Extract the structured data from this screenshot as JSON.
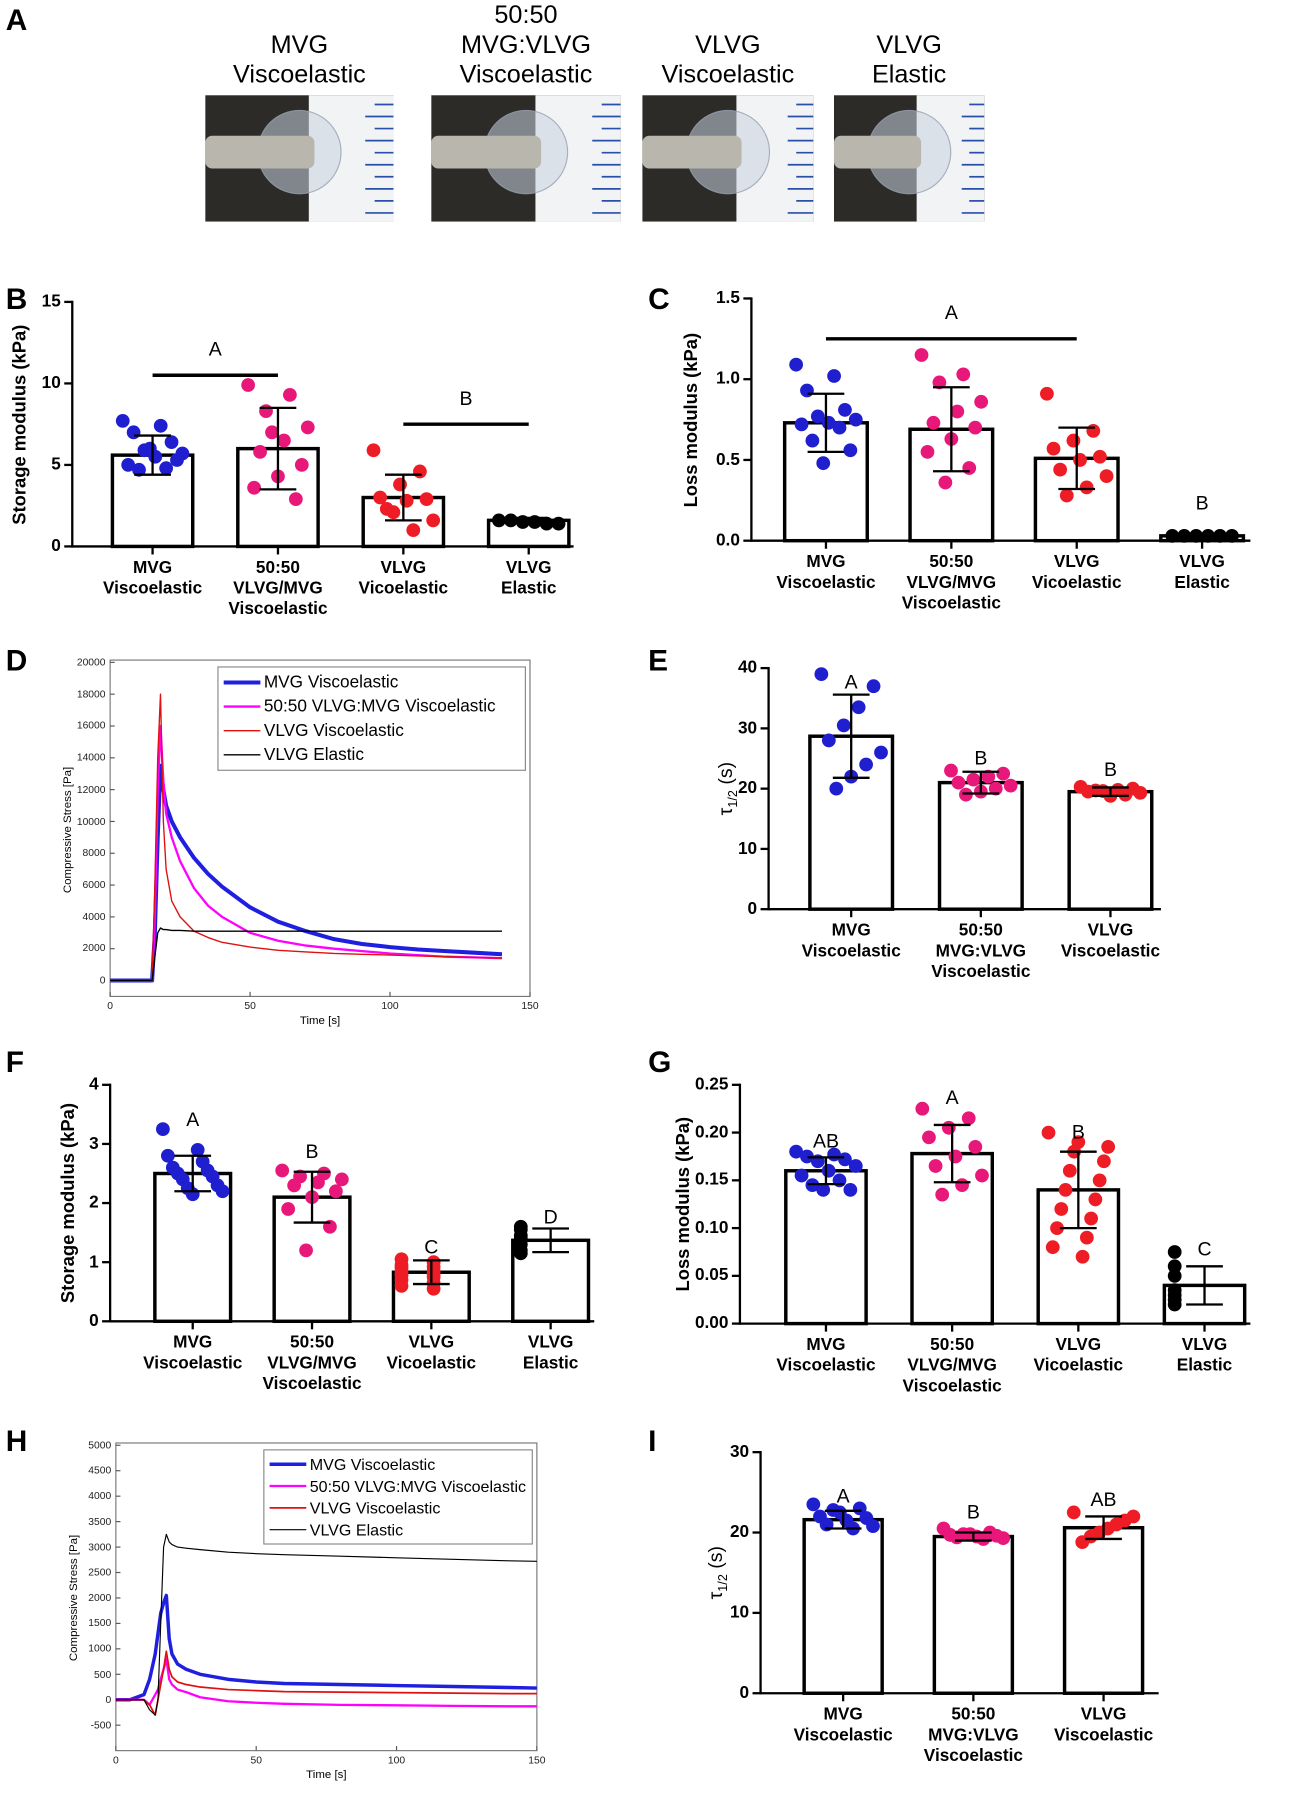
{
  "panel_a": {
    "label": "A",
    "titles": [
      "MVG\nViscoelastic",
      "50:50\nMVG:VLVG\nViscoelastic",
      "VLVG\nViscoelastic",
      "VLVG\nElastic"
    ]
  },
  "chart_data": [
    {
      "type": "bar",
      "panel": "B",
      "ylabel": "Storage modulus (kPa)",
      "categories": [
        "MVG\nViscoelastic",
        "50:50\nVLVG/MVG\nViscoelastic",
        "VLVG\nVicoelastic",
        "VLVG\nElastic"
      ],
      "values": [
        5.6,
        6.0,
        3.0,
        1.6
      ],
      "errors": [
        1.2,
        2.5,
        1.4,
        0.15
      ],
      "ylim": [
        0,
        15
      ],
      "yticks": [
        0,
        5,
        10,
        15
      ],
      "point_colors": [
        "#1f1fd0",
        "#e8177a",
        "#ee1c24",
        "#000000"
      ],
      "points": [
        [
          7.7,
          7.4,
          7.0,
          6.4,
          5.9,
          5.7,
          5.5,
          5.0,
          4.8,
          4.7,
          5.3,
          6.0
        ],
        [
          9.9,
          9.3,
          8.3,
          7.3,
          6.5,
          5.8,
          5.0,
          4.3,
          3.6,
          2.9,
          7.0
        ],
        [
          5.9,
          4.6,
          3.8,
          3.0,
          2.9,
          2.8,
          2.3,
          1.6,
          1.0,
          2.1
        ],
        [
          1.6,
          1.6,
          1.5,
          1.5,
          1.4,
          1.4
        ]
      ],
      "annotations": [
        {
          "text": "A",
          "from": 0,
          "to": 1,
          "y": 10.5
        },
        {
          "text": "B",
          "from": 2,
          "to": 3,
          "y": 7.5
        }
      ]
    },
    {
      "type": "bar",
      "panel": "C",
      "ylabel": "Loss modulus (kPa)",
      "categories": [
        "MVG\nViscoelastic",
        "50:50\nVLVG/MVG\nViscoelastic",
        "VLVG\nVicoelastic",
        "VLVG\nElastic"
      ],
      "values": [
        0.73,
        0.69,
        0.51,
        0.03
      ],
      "errors": [
        0.18,
        0.26,
        0.19,
        0.01
      ],
      "ylim": [
        0,
        1.5
      ],
      "yticks": [
        {
          "value": 0,
          "label": "0.0"
        },
        0.5,
        {
          "value": 1,
          "label": "1.0"
        },
        1.5
      ],
      "point_colors": [
        "#1f1fd0",
        "#e8177a",
        "#ee1c24",
        "#000000"
      ],
      "points": [
        [
          1.09,
          1.02,
          0.93,
          0.81,
          0.77,
          0.75,
          0.73,
          0.72,
          0.7,
          0.62,
          0.56,
          0.48
        ],
        [
          1.15,
          1.03,
          0.98,
          0.86,
          0.8,
          0.73,
          0.7,
          0.63,
          0.55,
          0.45,
          0.36
        ],
        [
          0.91,
          0.68,
          0.62,
          0.57,
          0.52,
          0.5,
          0.44,
          0.4,
          0.33,
          0.28
        ],
        [
          0.03,
          0.03,
          0.03,
          0.03,
          0.03,
          0.03
        ]
      ],
      "annotations": [
        {
          "text": "A",
          "from": 0,
          "to": 2,
          "y": 1.25
        },
        {
          "text": "B",
          "at": 3,
          "y": 0.23
        }
      ]
    },
    {
      "type": "line",
      "panel": "D",
      "xlabel": "Time [s]",
      "ylabel": "Compressive Stress [Pa]",
      "xlim": [
        0,
        150
      ],
      "ylim": [
        -1000,
        20000
      ],
      "xticks": [
        0,
        50,
        100,
        150
      ],
      "yticks": [
        0,
        2000,
        4000,
        6000,
        8000,
        10000,
        12000,
        14000,
        16000,
        18000,
        20000
      ],
      "legend": "upper right",
      "x": [
        0,
        5,
        10,
        15,
        16,
        17,
        18,
        19,
        20,
        22,
        25,
        30,
        35,
        40,
        50,
        60,
        70,
        80,
        90,
        100,
        110,
        120,
        130,
        140
      ],
      "series": [
        {
          "name": "MVG Viscoelastic",
          "color": "#1f1fe0",
          "values": [
            0,
            0,
            0,
            0,
            3000,
            9000,
            13500,
            12000,
            11000,
            10000,
            9000,
            7700,
            6700,
            5900,
            4600,
            3700,
            3100,
            2600,
            2300,
            2100,
            1950,
            1850,
            1750,
            1650
          ]
        },
        {
          "name": "50:50 VLVG:MVG Viscoelastic",
          "color": "#ff00ff",
          "values": [
            0,
            0,
            0,
            0,
            4000,
            12000,
            16000,
            12500,
            10500,
            9000,
            7500,
            5800,
            4700,
            4000,
            3000,
            2500,
            2200,
            2000,
            1850,
            1700,
            1600,
            1500,
            1450,
            1400
          ]
        },
        {
          "name": "VLVG Viscoelastic",
          "color": "#e01010",
          "values": [
            0,
            0,
            0,
            0,
            6000,
            14000,
            18000,
            10000,
            7000,
            5000,
            4000,
            3100,
            2700,
            2400,
            2100,
            1900,
            1800,
            1700,
            1650,
            1600,
            1550,
            1500,
            1450,
            1400
          ]
        },
        {
          "name": "VLVG Elastic",
          "color": "#000000",
          "values": [
            0,
            0,
            0,
            0,
            1500,
            3000,
            3300,
            3200,
            3200,
            3150,
            3150,
            3100,
            3100,
            3100,
            3100,
            3100,
            3100,
            3100,
            3100,
            3100,
            3100,
            3100,
            3100,
            3100
          ]
        }
      ]
    },
    {
      "type": "bar",
      "panel": "E",
      "ylabel": "τ1/2 (s)",
      "categories": [
        "MVG\nViscoelastic",
        "50:50\nMVG:VLVG\nViscoelastic",
        "VLVG\nViscoelastic"
      ],
      "values": [
        28.7,
        21.0,
        19.5
      ],
      "errors": [
        6.9,
        1.8,
        0.7
      ],
      "ylim": [
        0,
        40
      ],
      "yticks": [
        0,
        10,
        20,
        30,
        40
      ],
      "point_colors": [
        "#1f1fd0",
        "#e8177a",
        "#ee1c24"
      ],
      "points": [
        [
          39,
          37,
          33.5,
          30.5,
          28,
          26,
          24,
          22,
          20
        ],
        [
          23,
          22.5,
          22,
          21.5,
          21,
          20.5,
          20,
          19.5,
          19
        ],
        [
          20.3,
          20,
          19.8,
          19.6,
          19.5,
          19.3,
          19,
          18.8,
          19.7
        ]
      ],
      "annotations": [
        {
          "text": "A",
          "at": 0,
          "y": 37.5
        },
        {
          "text": "B",
          "at": 1,
          "y": 25
        },
        {
          "text": "B",
          "at": 2,
          "y": 23
        }
      ]
    },
    {
      "type": "bar",
      "panel": "F",
      "ylabel": "Storage modulus (kPa)",
      "categories": [
        "MVG\nViscoelastic",
        "50:50\nVLVG/MVG\nViscoelastic",
        "VLVG\nVicoelastic",
        "VLVG\nElastic"
      ],
      "values": [
        2.5,
        2.1,
        0.83,
        1.37
      ],
      "errors": [
        0.3,
        0.43,
        0.2,
        0.2
      ],
      "ylim": [
        0,
        4
      ],
      "yticks": [
        0,
        1,
        2,
        3,
        4
      ],
      "point_colors": [
        "#1f1fd0",
        "#e8177a",
        "#ee1c24",
        "#000000"
      ],
      "points": [
        [
          3.25,
          2.9,
          2.8,
          2.7,
          2.6,
          2.55,
          2.5,
          2.45,
          2.4,
          2.3,
          2.25,
          2.2,
          2.15
        ],
        [
          2.55,
          2.5,
          2.45,
          2.4,
          2.35,
          2.3,
          2.2,
          2.1,
          1.9,
          1.6,
          1.2
        ],
        [
          1.05,
          1.0,
          0.95,
          0.92,
          0.9,
          0.85,
          0.82,
          0.8,
          0.78,
          0.75,
          0.7,
          0.65,
          0.6,
          0.55
        ],
        [
          1.6,
          1.55,
          1.45,
          1.4,
          1.3,
          1.2,
          1.15
        ]
      ],
      "annotations": [
        {
          "text": "A",
          "at": 0,
          "y": 3.4
        },
        {
          "text": "B",
          "at": 1,
          "y": 2.85
        },
        {
          "text": "C",
          "at": 2,
          "y": 1.25
        },
        {
          "text": "D",
          "at": 3,
          "y": 1.75
        }
      ]
    },
    {
      "type": "bar",
      "panel": "G",
      "ylabel": "Loss modulus (kPa)",
      "categories": [
        "MVG\nViscoelastic",
        "50:50\nVLVG/MVG\nViscoelastic",
        "VLVG\nVicoelastic",
        "VLVG\nElastic"
      ],
      "values": [
        0.16,
        0.178,
        0.14,
        0.04
      ],
      "errors": [
        0.014,
        0.03,
        0.04,
        0.02
      ],
      "ylim": [
        0,
        0.25
      ],
      "yticks": [
        {
          "value": 0,
          "label": "0.00"
        },
        0.05,
        {
          "value": 0.1,
          "label": "0.10"
        },
        0.15,
        {
          "value": 0.2,
          "label": "0.20"
        },
        0.25
      ],
      "point_colors": [
        "#1f1fd0",
        "#e8177a",
        "#ee1c24",
        "#000000"
      ],
      "points": [
        [
          0.18,
          0.177,
          0.175,
          0.172,
          0.17,
          0.165,
          0.16,
          0.155,
          0.15,
          0.145,
          0.14,
          0.14
        ],
        [
          0.225,
          0.215,
          0.205,
          0.195,
          0.185,
          0.175,
          0.165,
          0.155,
          0.145,
          0.135
        ],
        [
          0.2,
          0.19,
          0.185,
          0.18,
          0.17,
          0.16,
          0.15,
          0.14,
          0.13,
          0.12,
          0.11,
          0.1,
          0.09,
          0.08,
          0.07
        ],
        [
          0.075,
          0.06,
          0.05,
          0.035,
          0.03,
          0.025,
          0.02
        ]
      ],
      "annotations": [
        {
          "text": "AB",
          "at": 0,
          "y": 0.19
        },
        {
          "text": "A",
          "at": 1,
          "y": 0.235
        },
        {
          "text": "B",
          "at": 2,
          "y": 0.2
        },
        {
          "text": "C",
          "at": 3,
          "y": 0.077
        }
      ]
    },
    {
      "type": "line",
      "panel": "H",
      "xlabel": "Time [s]",
      "ylabel": "Compressive Stress [Pa]",
      "xlim": [
        0,
        150
      ],
      "ylim": [
        -1000,
        5000
      ],
      "xticks": [
        0,
        50,
        100,
        150
      ],
      "yticks": [
        -500,
        0,
        500,
        1000,
        1500,
        2000,
        2500,
        3000,
        3500,
        4000,
        4500,
        5000
      ],
      "legend": "upper right",
      "x": [
        0,
        5,
        10,
        12,
        14,
        15,
        16,
        17,
        18,
        19,
        20,
        22,
        25,
        30,
        40,
        50,
        60,
        80,
        100,
        120,
        140,
        150
      ],
      "series": [
        {
          "name": "MVG Viscoelastic",
          "color": "#1f1fe0",
          "values": [
            0,
            0,
            100,
            400,
            900,
            1300,
            1700,
            1900,
            2050,
            1200,
            900,
            700,
            600,
            500,
            400,
            350,
            320,
            300,
            280,
            260,
            240,
            230
          ]
        },
        {
          "name": "50:50 VLVG:MVG Viscoelastic",
          "color": "#ff00ff",
          "values": [
            0,
            0,
            0,
            -100,
            100,
            200,
            400,
            600,
            800,
            400,
            300,
            200,
            150,
            50,
            -30,
            -60,
            -80,
            -100,
            -110,
            -120,
            -130,
            -130
          ]
        },
        {
          "name": "VLVG Viscoelastic",
          "color": "#e01010",
          "values": [
            0,
            0,
            0,
            -100,
            -300,
            0,
            300,
            600,
            950,
            600,
            450,
            350,
            300,
            250,
            200,
            180,
            160,
            150,
            140,
            130,
            120,
            120
          ]
        },
        {
          "name": "VLVG Elastic",
          "color": "#000000",
          "values": [
            0,
            0,
            0,
            -200,
            -300,
            0,
            1500,
            3000,
            3250,
            3100,
            3050,
            3000,
            2980,
            2950,
            2900,
            2870,
            2850,
            2820,
            2790,
            2760,
            2730,
            2720
          ]
        }
      ]
    },
    {
      "type": "bar",
      "panel": "I",
      "ylabel": "τ1/2 (s)",
      "categories": [
        "MVG\nViscoelastic",
        "50:50\nMVG:VLVG\nViscoelastic",
        "VLVG\nViscoelastic"
      ],
      "values": [
        21.6,
        19.5,
        20.6
      ],
      "errors": [
        1.1,
        0.5,
        1.4
      ],
      "ylim": [
        0,
        30
      ],
      "yticks": [
        0,
        10,
        20,
        30
      ],
      "point_colors": [
        "#1f1fd0",
        "#e8177a",
        "#ee1c24"
      ],
      "points": [
        [
          23.5,
          23,
          22.5,
          22,
          21.8,
          21.5,
          21,
          20.8,
          20.5,
          22.8
        ],
        [
          20.5,
          20,
          19.8,
          19.7,
          19.6,
          19.5,
          19.4,
          19.3,
          19.2,
          19.8
        ],
        [
          22.5,
          22,
          21.5,
          21,
          20.5,
          20,
          19.5,
          18.8
        ]
      ],
      "annotations": [
        {
          "text": "A",
          "at": 0,
          "y": 24.5
        },
        {
          "text": "B",
          "at": 1,
          "y": 22.5
        },
        {
          "text": "AB",
          "at": 2,
          "y": 24
        }
      ]
    }
  ]
}
